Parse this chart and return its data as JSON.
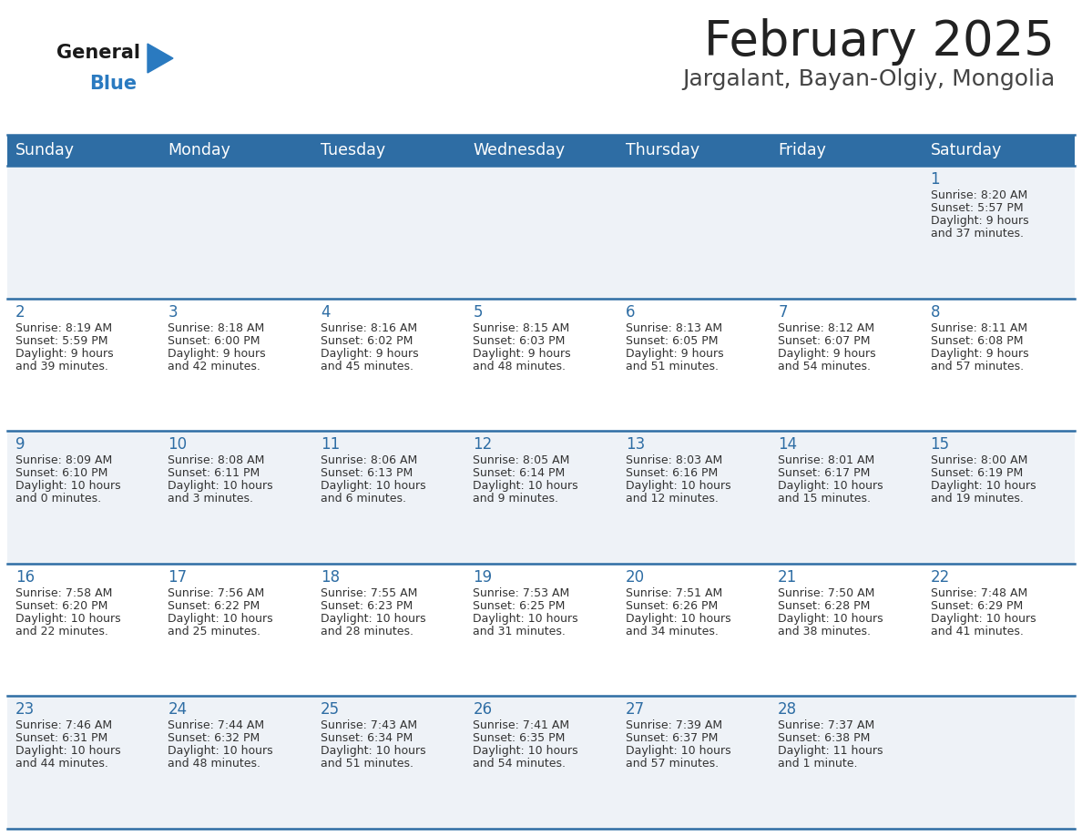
{
  "title": "February 2025",
  "subtitle": "Jargalant, Bayan-Olgiy, Mongolia",
  "header_bg_color": "#2e6da4",
  "header_text_color": "#ffffff",
  "cell_bg_color_odd": "#eef2f7",
  "cell_bg_color_even": "#ffffff",
  "day_headers": [
    "Sunday",
    "Monday",
    "Tuesday",
    "Wednesday",
    "Thursday",
    "Friday",
    "Saturday"
  ],
  "title_color": "#222222",
  "subtitle_color": "#444444",
  "day_number_color": "#2e6da4",
  "info_text_color": "#333333",
  "grid_color": "#2e6da4",
  "logo_general_color": "#1a1a1a",
  "logo_blue_color": "#2a7ac0",
  "days": [
    {
      "day": 1,
      "col": 6,
      "row": 0,
      "sunrise": "8:20 AM",
      "sunset": "5:57 PM",
      "daylight_hours": "9",
      "daylight_minutes": "37"
    },
    {
      "day": 2,
      "col": 0,
      "row": 1,
      "sunrise": "8:19 AM",
      "sunset": "5:59 PM",
      "daylight_hours": "9",
      "daylight_minutes": "39"
    },
    {
      "day": 3,
      "col": 1,
      "row": 1,
      "sunrise": "8:18 AM",
      "sunset": "6:00 PM",
      "daylight_hours": "9",
      "daylight_minutes": "42"
    },
    {
      "day": 4,
      "col": 2,
      "row": 1,
      "sunrise": "8:16 AM",
      "sunset": "6:02 PM",
      "daylight_hours": "9",
      "daylight_minutes": "45"
    },
    {
      "day": 5,
      "col": 3,
      "row": 1,
      "sunrise": "8:15 AM",
      "sunset": "6:03 PM",
      "daylight_hours": "9",
      "daylight_minutes": "48"
    },
    {
      "day": 6,
      "col": 4,
      "row": 1,
      "sunrise": "8:13 AM",
      "sunset": "6:05 PM",
      "daylight_hours": "9",
      "daylight_minutes": "51"
    },
    {
      "day": 7,
      "col": 5,
      "row": 1,
      "sunrise": "8:12 AM",
      "sunset": "6:07 PM",
      "daylight_hours": "9",
      "daylight_minutes": "54"
    },
    {
      "day": 8,
      "col": 6,
      "row": 1,
      "sunrise": "8:11 AM",
      "sunset": "6:08 PM",
      "daylight_hours": "9",
      "daylight_minutes": "57"
    },
    {
      "day": 9,
      "col": 0,
      "row": 2,
      "sunrise": "8:09 AM",
      "sunset": "6:10 PM",
      "daylight_hours": "10",
      "daylight_minutes": "0"
    },
    {
      "day": 10,
      "col": 1,
      "row": 2,
      "sunrise": "8:08 AM",
      "sunset": "6:11 PM",
      "daylight_hours": "10",
      "daylight_minutes": "3"
    },
    {
      "day": 11,
      "col": 2,
      "row": 2,
      "sunrise": "8:06 AM",
      "sunset": "6:13 PM",
      "daylight_hours": "10",
      "daylight_minutes": "6"
    },
    {
      "day": 12,
      "col": 3,
      "row": 2,
      "sunrise": "8:05 AM",
      "sunset": "6:14 PM",
      "daylight_hours": "10",
      "daylight_minutes": "9"
    },
    {
      "day": 13,
      "col": 4,
      "row": 2,
      "sunrise": "8:03 AM",
      "sunset": "6:16 PM",
      "daylight_hours": "10",
      "daylight_minutes": "12"
    },
    {
      "day": 14,
      "col": 5,
      "row": 2,
      "sunrise": "8:01 AM",
      "sunset": "6:17 PM",
      "daylight_hours": "10",
      "daylight_minutes": "15"
    },
    {
      "day": 15,
      "col": 6,
      "row": 2,
      "sunrise": "8:00 AM",
      "sunset": "6:19 PM",
      "daylight_hours": "10",
      "daylight_minutes": "19"
    },
    {
      "day": 16,
      "col": 0,
      "row": 3,
      "sunrise": "7:58 AM",
      "sunset": "6:20 PM",
      "daylight_hours": "10",
      "daylight_minutes": "22"
    },
    {
      "day": 17,
      "col": 1,
      "row": 3,
      "sunrise": "7:56 AM",
      "sunset": "6:22 PM",
      "daylight_hours": "10",
      "daylight_minutes": "25"
    },
    {
      "day": 18,
      "col": 2,
      "row": 3,
      "sunrise": "7:55 AM",
      "sunset": "6:23 PM",
      "daylight_hours": "10",
      "daylight_minutes": "28"
    },
    {
      "day": 19,
      "col": 3,
      "row": 3,
      "sunrise": "7:53 AM",
      "sunset": "6:25 PM",
      "daylight_hours": "10",
      "daylight_minutes": "31"
    },
    {
      "day": 20,
      "col": 4,
      "row": 3,
      "sunrise": "7:51 AM",
      "sunset": "6:26 PM",
      "daylight_hours": "10",
      "daylight_minutes": "34"
    },
    {
      "day": 21,
      "col": 5,
      "row": 3,
      "sunrise": "7:50 AM",
      "sunset": "6:28 PM",
      "daylight_hours": "10",
      "daylight_minutes": "38"
    },
    {
      "day": 22,
      "col": 6,
      "row": 3,
      "sunrise": "7:48 AM",
      "sunset": "6:29 PM",
      "daylight_hours": "10",
      "daylight_minutes": "41"
    },
    {
      "day": 23,
      "col": 0,
      "row": 4,
      "sunrise": "7:46 AM",
      "sunset": "6:31 PM",
      "daylight_hours": "10",
      "daylight_minutes": "44"
    },
    {
      "day": 24,
      "col": 1,
      "row": 4,
      "sunrise": "7:44 AM",
      "sunset": "6:32 PM",
      "daylight_hours": "10",
      "daylight_minutes": "48"
    },
    {
      "day": 25,
      "col": 2,
      "row": 4,
      "sunrise": "7:43 AM",
      "sunset": "6:34 PM",
      "daylight_hours": "10",
      "daylight_minutes": "51"
    },
    {
      "day": 26,
      "col": 3,
      "row": 4,
      "sunrise": "7:41 AM",
      "sunset": "6:35 PM",
      "daylight_hours": "10",
      "daylight_minutes": "54"
    },
    {
      "day": 27,
      "col": 4,
      "row": 4,
      "sunrise": "7:39 AM",
      "sunset": "6:37 PM",
      "daylight_hours": "10",
      "daylight_minutes": "57"
    },
    {
      "day": 28,
      "col": 5,
      "row": 4,
      "sunrise": "7:37 AM",
      "sunset": "6:38 PM",
      "daylight_hours": "11",
      "daylight_minutes": "1",
      "daylight_minute_label": "minute"
    }
  ]
}
